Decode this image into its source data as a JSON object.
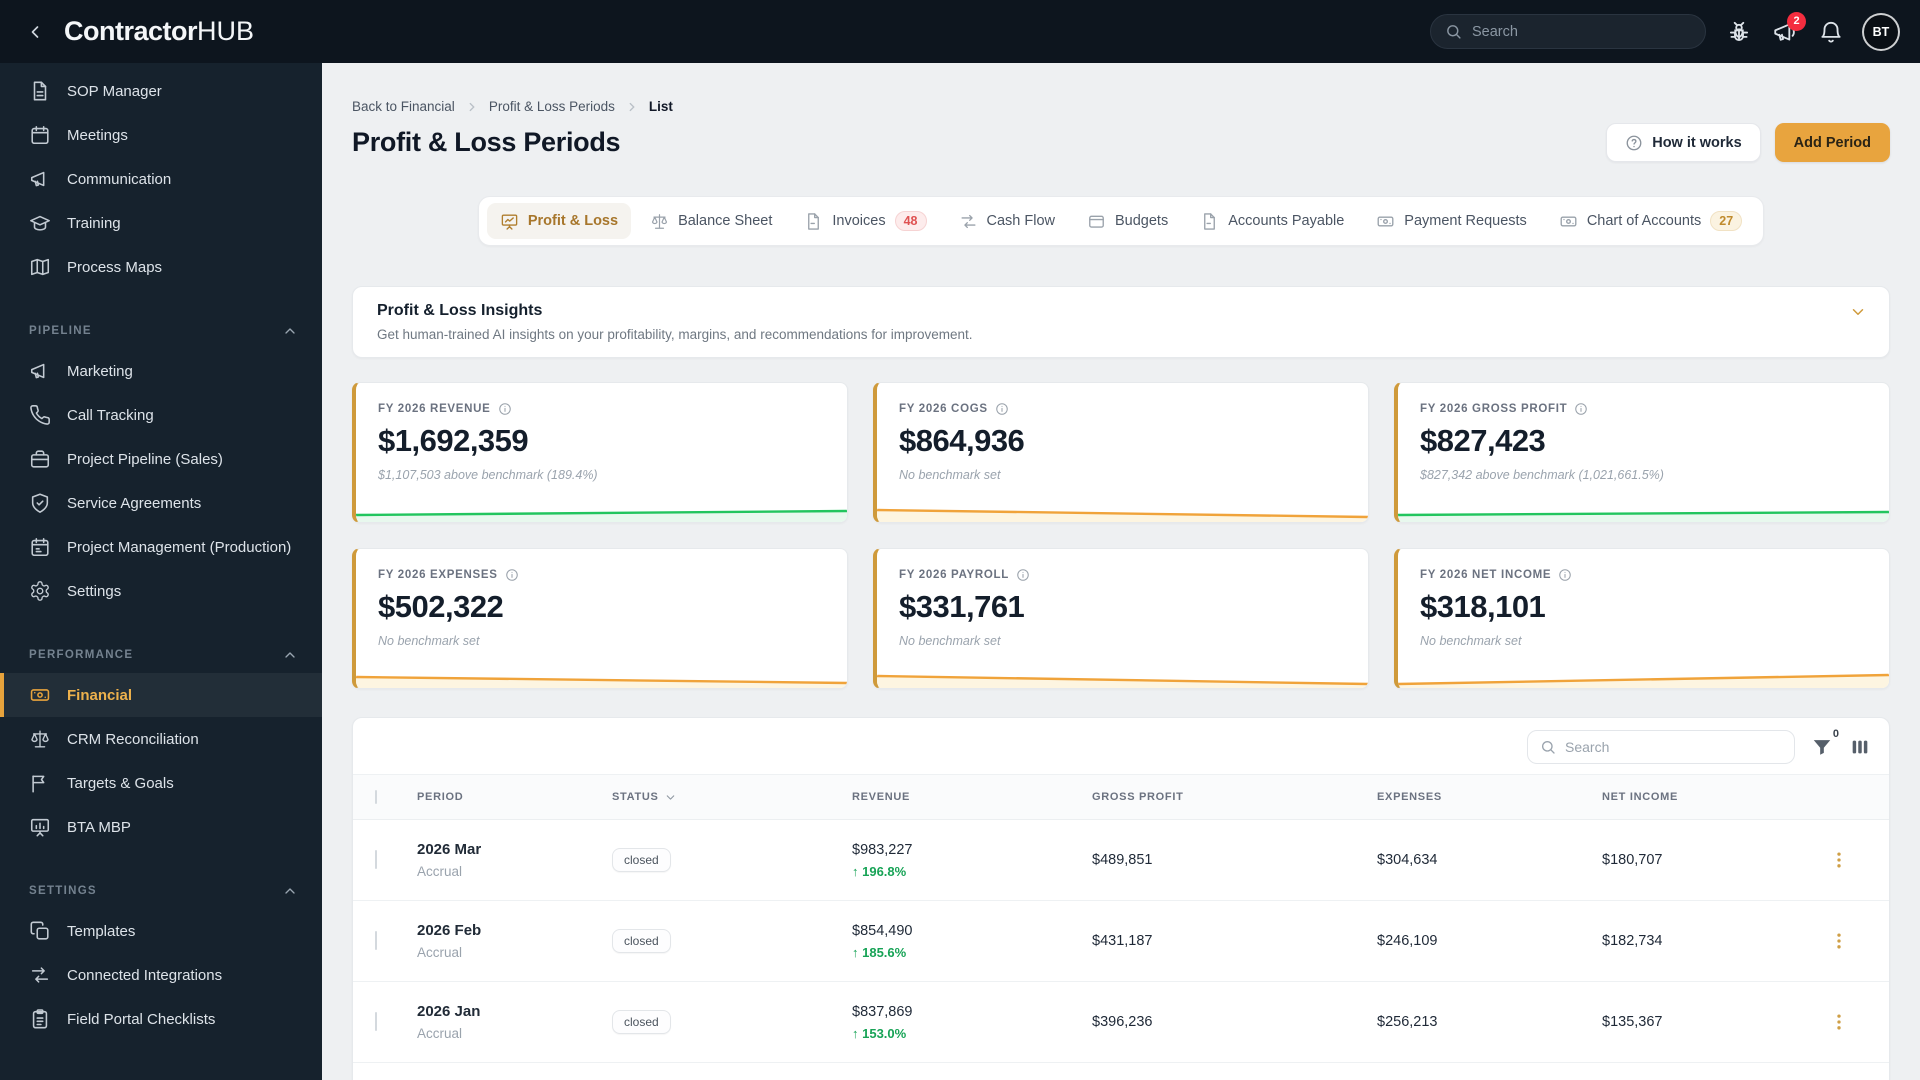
{
  "brand": {
    "name_bold": "Contractor",
    "name_light": "HUB"
  },
  "navbar": {
    "search_placeholder": "Search",
    "announcement_badge": "2",
    "avatar_initials": "BT"
  },
  "sidebar": {
    "top_items": [
      {
        "label": "SOP Manager",
        "icon": "document-icon"
      },
      {
        "label": "Meetings",
        "icon": "calendar-icon"
      },
      {
        "label": "Communication",
        "icon": "megaphone-icon"
      },
      {
        "label": "Training",
        "icon": "graduation-cap-icon"
      },
      {
        "label": "Process Maps",
        "icon": "map-icon"
      }
    ],
    "sections": [
      {
        "label": "PIPELINE",
        "items": [
          {
            "label": "Marketing",
            "icon": "megaphone-icon"
          },
          {
            "label": "Call Tracking",
            "icon": "phone-icon"
          },
          {
            "label": "Project Pipeline (Sales)",
            "icon": "briefcase-icon"
          },
          {
            "label": "Service Agreements",
            "icon": "shield-check-icon"
          },
          {
            "label": "Project Management (Production)",
            "icon": "calendar-check-icon"
          },
          {
            "label": "Settings",
            "icon": "gear-icon"
          }
        ]
      },
      {
        "label": "PERFORMANCE",
        "items": [
          {
            "label": "Financial",
            "icon": "cash-icon",
            "active": true
          },
          {
            "label": "CRM Reconciliation",
            "icon": "scale-icon"
          },
          {
            "label": "Targets & Goals",
            "icon": "flag-icon"
          },
          {
            "label": "BTA MBP",
            "icon": "presentation-chart-icon"
          }
        ]
      },
      {
        "label": "SETTINGS",
        "items": [
          {
            "label": "Templates",
            "icon": "copy-icon"
          },
          {
            "label": "Connected Integrations",
            "icon": "transfer-arrows-icon"
          },
          {
            "label": "Field Portal Checklists",
            "icon": "clipboard-icon"
          }
        ]
      }
    ]
  },
  "breadcrumb": {
    "items": [
      "Back to Financial",
      "Profit & Loss Periods",
      "List"
    ]
  },
  "page": {
    "title": "Profit & Loss Periods",
    "how_it_works_label": "How it works",
    "add_period_label": "Add Period"
  },
  "tabs": [
    {
      "label": "Profit & Loss",
      "icon": "presentation-line-icon",
      "active": true
    },
    {
      "label": "Balance Sheet",
      "icon": "scale-icon"
    },
    {
      "label": "Invoices",
      "icon": "file-icon",
      "badge": "48",
      "badge_color": "red"
    },
    {
      "label": "Cash Flow",
      "icon": "transfer-arrows-icon"
    },
    {
      "label": "Budgets",
      "icon": "wallet-icon"
    },
    {
      "label": "Accounts Payable",
      "icon": "file-icon"
    },
    {
      "label": "Payment Requests",
      "icon": "cash-icon"
    },
    {
      "label": "Chart of Accounts",
      "icon": "cash-icon",
      "badge": "27",
      "badge_color": "amber"
    }
  ],
  "insights": {
    "title": "Profit & Loss Insights",
    "subtitle": "Get human-trained AI insights on your profitability, margins, and recommendations for improvement."
  },
  "metrics": [
    {
      "label": "FY 2026 REVENUE",
      "value": "$1,692,359",
      "benchmark": "$1,107,503 above benchmark (189.4%)",
      "trend": "green",
      "spark": [
        11,
        7
      ]
    },
    {
      "label": "FY 2026 COGS",
      "value": "$864,936",
      "benchmark": "No benchmark set",
      "trend": "amber",
      "spark": [
        6,
        13
      ]
    },
    {
      "label": "FY 2026 GROSS PROFIT",
      "value": "$827,423",
      "benchmark": "$827,342 above benchmark (1,021,661.5%)",
      "trend": "green",
      "spark": [
        11,
        8
      ]
    },
    {
      "label": "FY 2026 EXPENSES",
      "value": "$502,322",
      "benchmark": "No benchmark set",
      "trend": "amber",
      "spark": [
        7,
        13
      ]
    },
    {
      "label": "FY 2026 PAYROLL",
      "value": "$331,761",
      "benchmark": "No benchmark set",
      "trend": "amber",
      "spark": [
        6,
        14
      ]
    },
    {
      "label": "FY 2026 NET INCOME",
      "value": "$318,101",
      "benchmark": "No benchmark set",
      "trend": "amber",
      "spark": [
        14,
        5
      ]
    }
  ],
  "table": {
    "search_placeholder": "Search",
    "filter_count": "0",
    "columns": [
      "PERIOD",
      "STATUS",
      "REVENUE",
      "GROSS PROFIT",
      "EXPENSES",
      "NET INCOME"
    ],
    "rows": [
      {
        "period": "2026 Mar",
        "basis": "Accrual",
        "status": "closed",
        "revenue": "$983,227",
        "revenue_change": "196.8%",
        "gross_profit": "$489,851",
        "expenses": "$304,634",
        "net_income": "$180,707"
      },
      {
        "period": "2026 Feb",
        "basis": "Accrual",
        "status": "closed",
        "revenue": "$854,490",
        "revenue_change": "185.6%",
        "gross_profit": "$431,187",
        "expenses": "$246,109",
        "net_income": "$182,734"
      },
      {
        "period": "2026 Jan",
        "basis": "Accrual",
        "status": "closed",
        "revenue": "$837,869",
        "revenue_change": "153.0%",
        "gross_profit": "$396,236",
        "expenses": "$256,213",
        "net_income": "$135,367"
      }
    ]
  },
  "colors": {
    "accent_amber": "#e8a43e",
    "green_line": "#22c55e",
    "green_fill": "#e8f8ee",
    "amber_line": "#f0a33a",
    "amber_fill": "#fdf5e1",
    "red_badge": "#f42d3f"
  }
}
